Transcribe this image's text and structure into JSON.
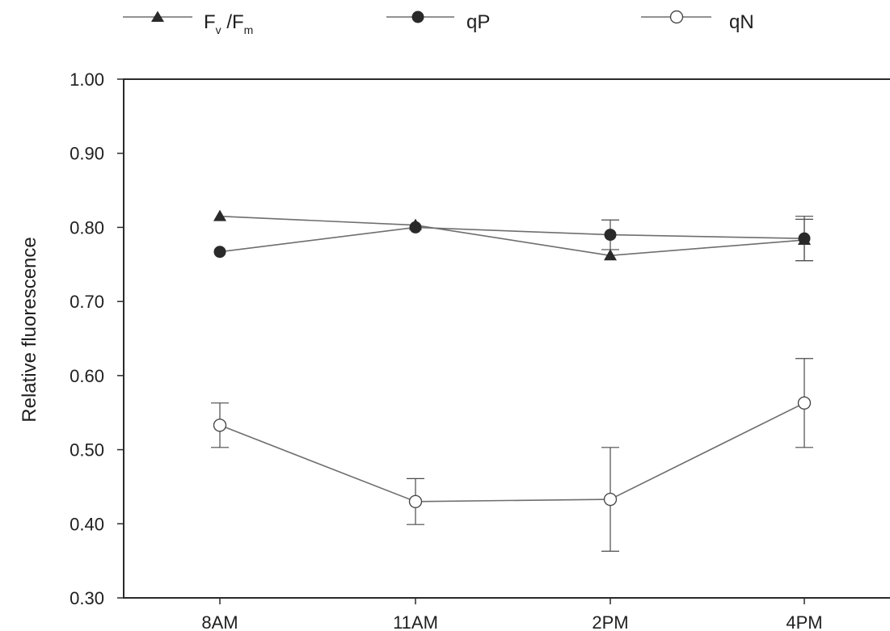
{
  "chart_data": {
    "type": "line",
    "title": "",
    "xlabel": "",
    "ylabel": "Relative fluorescence",
    "categories": [
      "8AM",
      "11AM",
      "2PM",
      "4PM"
    ],
    "ylim": [
      0.3,
      1.0
    ],
    "yticks": [
      "0.30",
      "0.40",
      "0.50",
      "0.60",
      "0.70",
      "0.80",
      "0.90",
      "1.00"
    ],
    "grid": false,
    "legend_position": "top",
    "series": [
      {
        "name": "Fv /Fm",
        "marker": "filled-triangle",
        "values": [
          0.815,
          0.803,
          0.762,
          0.783
        ],
        "error": [
          0,
          0,
          0,
          0.028
        ]
      },
      {
        "name": "qP",
        "marker": "filled-circle",
        "values": [
          0.767,
          0.8,
          0.79,
          0.785
        ],
        "error": [
          0,
          0,
          0.02,
          0.03
        ]
      },
      {
        "name": "qN",
        "marker": "open-circle",
        "values": [
          0.533,
          0.43,
          0.433,
          0.563
        ],
        "error": [
          0.03,
          0.031,
          0.07,
          0.06
        ]
      }
    ],
    "legend": {
      "fvfm": {
        "main": "F",
        "sub1": "v",
        "slash": " /F",
        "sub2": "m"
      },
      "qp": "qP",
      "qn": "qN"
    },
    "colors": {
      "line": "#6e6e6e",
      "marker": "#2a2a2a",
      "axis": "#2a2a2a"
    }
  }
}
